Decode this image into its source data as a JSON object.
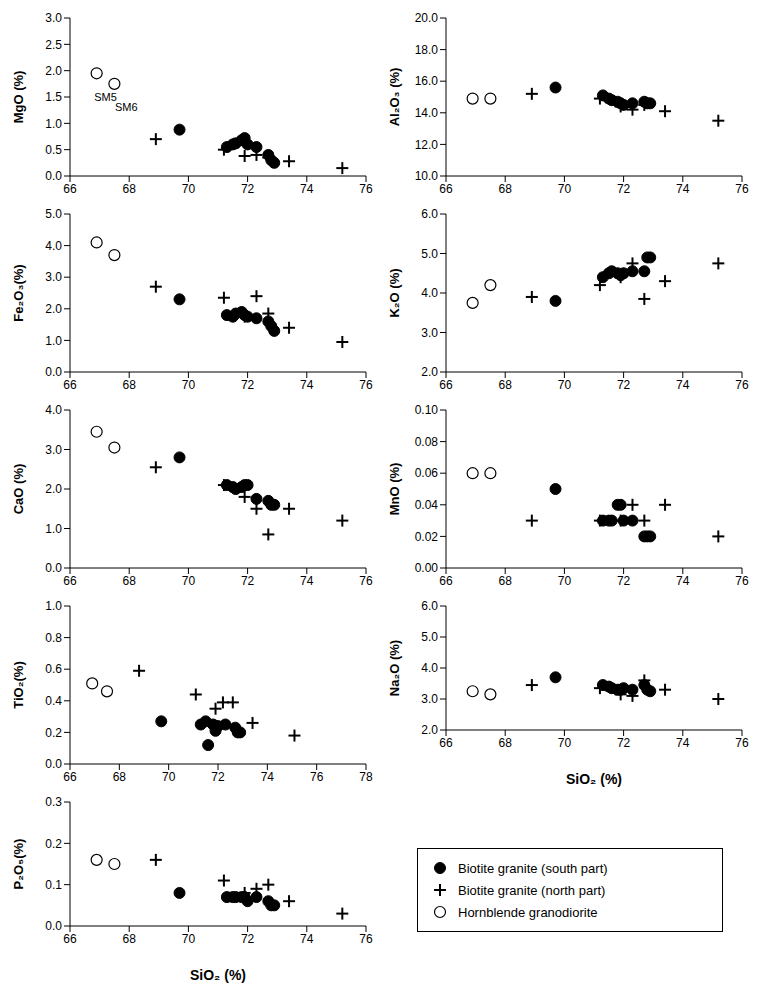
{
  "chart_data": [
    {
      "type": "scatter",
      "y_label": "MgO (%)",
      "xlim": [
        66,
        76
      ],
      "xticks": [
        66,
        68,
        70,
        72,
        74,
        76
      ],
      "ylim": [
        0,
        3
      ],
      "yticks": [
        {
          "value": 0,
          "label": "0.0"
        },
        {
          "value": 0.5,
          "label": "0.5"
        },
        {
          "value": 1,
          "label": "1.0"
        },
        {
          "value": 1.5,
          "label": "1.5"
        },
        {
          "value": 2,
          "label": "2.0"
        },
        {
          "value": 2.5,
          "label": "2.5"
        },
        {
          "value": 3,
          "label": "3.0"
        }
      ],
      "annotations": [
        {
          "text": "SM5",
          "x": 67.2,
          "y": 1.5
        },
        {
          "text": "SM6",
          "x": 67.9,
          "y": 1.3
        }
      ],
      "series": [
        {
          "name": "Biotite granite (south part)",
          "marker": "circle",
          "color": "#000000",
          "x": [
            69.7,
            71.3,
            71.5,
            71.6,
            71.8,
            71.9,
            72.0,
            72.3,
            72.7,
            72.8,
            72.9
          ],
          "values": [
            0.88,
            0.55,
            0.6,
            0.62,
            0.68,
            0.72,
            0.6,
            0.55,
            0.4,
            0.3,
            0.25
          ]
        },
        {
          "name": "Biotite granite (north part)",
          "marker": "plus",
          "color": "#000000",
          "x": [
            68.9,
            71.2,
            71.9,
            72.3,
            72.7,
            73.4,
            75.2
          ],
          "values": [
            0.7,
            0.5,
            0.38,
            0.4,
            0.35,
            0.28,
            0.15
          ]
        },
        {
          "name": "Hornblende granodiorite",
          "marker": "open_circle",
          "color": "#000000",
          "x": [
            66.9,
            67.5
          ],
          "values": [
            1.95,
            1.75
          ]
        }
      ]
    },
    {
      "type": "scatter",
      "y_label": "Al₂O₃ (%)",
      "xlim": [
        66,
        76
      ],
      "xticks": [
        66,
        68,
        70,
        72,
        74,
        76
      ],
      "ylim": [
        10,
        20
      ],
      "yticks": [
        {
          "value": 10,
          "label": "10.0"
        },
        {
          "value": 12,
          "label": "12.0"
        },
        {
          "value": 14,
          "label": "14.0"
        },
        {
          "value": 16,
          "label": "16.0"
        },
        {
          "value": 18,
          "label": "18.0"
        },
        {
          "value": 20,
          "label": "20.0"
        }
      ],
      "series": [
        {
          "name": "Biotite granite (south part)",
          "marker": "circle",
          "color": "#000000",
          "x": [
            69.7,
            71.3,
            71.5,
            71.6,
            71.8,
            71.9,
            72.0,
            72.3,
            72.7,
            72.8,
            72.9
          ],
          "values": [
            15.6,
            15.1,
            14.9,
            14.8,
            14.7,
            14.6,
            14.5,
            14.6,
            14.7,
            14.6,
            14.6
          ]
        },
        {
          "name": "Biotite granite (north part)",
          "marker": "plus",
          "color": "#000000",
          "x": [
            68.9,
            71.2,
            71.9,
            72.3,
            72.7,
            73.4,
            75.2
          ],
          "values": [
            15.2,
            14.9,
            14.4,
            14.2,
            14.5,
            14.1,
            13.5
          ]
        },
        {
          "name": "Hornblende granodiorite",
          "marker": "open_circle",
          "color": "#000000",
          "x": [
            66.9,
            67.5
          ],
          "values": [
            14.9,
            14.9
          ]
        }
      ]
    },
    {
      "type": "scatter",
      "y_label": "Fe₂O₃(%)",
      "xlim": [
        66,
        76
      ],
      "xticks": [
        66,
        68,
        70,
        72,
        74,
        76
      ],
      "ylim": [
        0,
        5
      ],
      "yticks": [
        {
          "value": 0,
          "label": "0.0"
        },
        {
          "value": 1,
          "label": "1.0"
        },
        {
          "value": 2,
          "label": "2.0"
        },
        {
          "value": 3,
          "label": "3.0"
        },
        {
          "value": 4,
          "label": "4.0"
        },
        {
          "value": 5,
          "label": "5.0"
        }
      ],
      "series": [
        {
          "name": "Biotite granite (south part)",
          "marker": "circle",
          "color": "#000000",
          "x": [
            69.7,
            71.3,
            71.5,
            71.6,
            71.8,
            71.9,
            72.0,
            72.3,
            72.7,
            72.8,
            72.9
          ],
          "values": [
            2.3,
            1.8,
            1.75,
            1.85,
            1.9,
            1.8,
            1.75,
            1.7,
            1.6,
            1.45,
            1.3
          ]
        },
        {
          "name": "Biotite granite (north part)",
          "marker": "plus",
          "color": "#000000",
          "x": [
            68.9,
            71.2,
            71.9,
            72.3,
            72.7,
            73.4,
            75.2
          ],
          "values": [
            2.7,
            2.35,
            1.75,
            2.4,
            1.85,
            1.4,
            0.95
          ]
        },
        {
          "name": "Hornblende granodiorite",
          "marker": "open_circle",
          "color": "#000000",
          "x": [
            66.9,
            67.5
          ],
          "values": [
            4.1,
            3.7
          ]
        }
      ]
    },
    {
      "type": "scatter",
      "y_label": "K₂O (%)",
      "xlim": [
        66,
        76
      ],
      "xticks": [
        66,
        68,
        70,
        72,
        74,
        76
      ],
      "ylim": [
        2,
        6
      ],
      "yticks": [
        {
          "value": 2,
          "label": "2.0"
        },
        {
          "value": 3,
          "label": "3.0"
        },
        {
          "value": 4,
          "label": "4.0"
        },
        {
          "value": 5,
          "label": "5.0"
        },
        {
          "value": 6,
          "label": "6.0"
        }
      ],
      "series": [
        {
          "name": "Biotite granite (south part)",
          "marker": "circle",
          "color": "#000000",
          "x": [
            69.7,
            71.3,
            71.5,
            71.6,
            71.8,
            71.9,
            72.0,
            72.3,
            72.7,
            72.8,
            72.9
          ],
          "values": [
            3.8,
            4.4,
            4.5,
            4.55,
            4.5,
            4.45,
            4.5,
            4.55,
            4.55,
            4.9,
            4.9
          ]
        },
        {
          "name": "Biotite granite (north part)",
          "marker": "plus",
          "color": "#000000",
          "x": [
            68.9,
            71.2,
            71.9,
            72.3,
            72.7,
            73.4,
            75.2
          ],
          "values": [
            3.9,
            4.2,
            4.4,
            4.75,
            3.85,
            4.3,
            4.75
          ]
        },
        {
          "name": "Hornblende granodiorite",
          "marker": "open_circle",
          "color": "#000000",
          "x": [
            66.9,
            67.5
          ],
          "values": [
            3.75,
            4.2
          ]
        }
      ]
    },
    {
      "type": "scatter",
      "y_label": "CaO (%)",
      "xlim": [
        66,
        76
      ],
      "xticks": [
        66,
        68,
        70,
        72,
        74,
        76
      ],
      "ylim": [
        0,
        4
      ],
      "yticks": [
        {
          "value": 0,
          "label": "0.0"
        },
        {
          "value": 1,
          "label": "1.0"
        },
        {
          "value": 2,
          "label": "2.0"
        },
        {
          "value": 3,
          "label": "3.0"
        },
        {
          "value": 4,
          "label": "4.0"
        }
      ],
      "series": [
        {
          "name": "Biotite granite (south part)",
          "marker": "circle",
          "color": "#000000",
          "x": [
            69.7,
            71.3,
            71.5,
            71.6,
            71.8,
            71.9,
            72.0,
            72.3,
            72.7,
            72.8,
            72.9
          ],
          "values": [
            2.8,
            2.1,
            2.05,
            2.0,
            2.05,
            2.1,
            2.1,
            1.75,
            1.7,
            1.6,
            1.6
          ]
        },
        {
          "name": "Biotite granite (north part)",
          "marker": "plus",
          "color": "#000000",
          "x": [
            68.9,
            71.2,
            71.9,
            72.3,
            72.7,
            73.4,
            75.2
          ],
          "values": [
            2.55,
            2.1,
            1.8,
            1.5,
            0.85,
            1.5,
            1.2
          ]
        },
        {
          "name": "Hornblende granodiorite",
          "marker": "open_circle",
          "color": "#000000",
          "x": [
            66.9,
            67.5
          ],
          "values": [
            3.45,
            3.05
          ]
        }
      ]
    },
    {
      "type": "scatter",
      "y_label": "MnO (%)",
      "xlim": [
        66,
        76
      ],
      "xticks": [
        66,
        68,
        70,
        72,
        74,
        76
      ],
      "ylim": [
        0,
        0.1
      ],
      "yticks": [
        {
          "value": 0,
          "label": "0.00"
        },
        {
          "value": 0.02,
          "label": "0.02"
        },
        {
          "value": 0.04,
          "label": "0.04"
        },
        {
          "value": 0.06,
          "label": "0.06"
        },
        {
          "value": 0.08,
          "label": "0.08"
        },
        {
          "value": 0.1,
          "label": "0.10"
        }
      ],
      "series": [
        {
          "name": "Biotite granite (south part)",
          "marker": "circle",
          "color": "#000000",
          "x": [
            69.7,
            71.3,
            71.5,
            71.6,
            71.8,
            71.9,
            72.0,
            72.3,
            72.7,
            72.8,
            72.9
          ],
          "values": [
            0.05,
            0.03,
            0.03,
            0.03,
            0.04,
            0.04,
            0.03,
            0.03,
            0.02,
            0.02,
            0.02
          ]
        },
        {
          "name": "Biotite granite (north part)",
          "marker": "plus",
          "color": "#000000",
          "x": [
            68.9,
            71.2,
            71.9,
            72.3,
            72.7,
            73.4,
            75.2
          ],
          "values": [
            0.03,
            0.03,
            0.03,
            0.04,
            0.03,
            0.04,
            0.02
          ]
        },
        {
          "name": "Hornblende granodiorite",
          "marker": "open_circle",
          "color": "#000000",
          "x": [
            66.9,
            67.5
          ],
          "values": [
            0.06,
            0.06
          ]
        }
      ]
    },
    {
      "type": "scatter",
      "y_label": "TiO₂(%)",
      "xlim": [
        66,
        78
      ],
      "xticks": [
        66,
        68,
        70,
        72,
        74,
        76,
        78
      ],
      "ylim": [
        0,
        1
      ],
      "yticks": [
        {
          "value": 0,
          "label": "0.0"
        },
        {
          "value": 0.2,
          "label": "0.2"
        },
        {
          "value": 0.4,
          "label": "0.4"
        },
        {
          "value": 0.6,
          "label": "0.6"
        },
        {
          "value": 0.8,
          "label": "0.8"
        },
        {
          "value": 1,
          "label": "1.0"
        }
      ],
      "series": [
        {
          "name": "Biotite granite (south part)",
          "marker": "circle",
          "color": "#000000",
          "x": [
            69.7,
            71.3,
            71.5,
            71.6,
            71.8,
            71.9,
            72.0,
            72.3,
            72.7,
            72.8,
            72.9
          ],
          "values": [
            0.27,
            0.25,
            0.27,
            0.12,
            0.25,
            0.21,
            0.24,
            0.25,
            0.23,
            0.2,
            0.2
          ]
        },
        {
          "name": "Biotite granite (north part)",
          "marker": "plus",
          "color": "#000000",
          "x": [
            68.8,
            71.1,
            71.9,
            72.2,
            72.6,
            73.4,
            75.1
          ],
          "values": [
            0.59,
            0.44,
            0.35,
            0.39,
            0.39,
            0.26,
            0.18
          ]
        },
        {
          "name": "Hornblende granodiorite",
          "marker": "open_circle",
          "color": "#000000",
          "x": [
            66.9,
            67.5
          ],
          "values": [
            0.51,
            0.46
          ]
        }
      ]
    },
    {
      "type": "scatter",
      "y_label": "Na₂O (%)",
      "x_label": "SiO₂ (%)",
      "xlim": [
        66,
        76
      ],
      "xticks": [
        66,
        68,
        70,
        72,
        74,
        76
      ],
      "ylim": [
        2,
        6
      ],
      "yticks": [
        {
          "value": 2,
          "label": "2.0"
        },
        {
          "value": 3,
          "label": "3.0"
        },
        {
          "value": 4,
          "label": "4.0"
        },
        {
          "value": 5,
          "label": "5.0"
        },
        {
          "value": 6,
          "label": "6.0"
        }
      ],
      "series": [
        {
          "name": "Biotite granite (south part)",
          "marker": "circle",
          "color": "#000000",
          "x": [
            69.7,
            71.3,
            71.5,
            71.6,
            71.8,
            71.9,
            72.0,
            72.3,
            72.7,
            72.8,
            72.9
          ],
          "values": [
            3.7,
            3.45,
            3.4,
            3.35,
            3.3,
            3.3,
            3.35,
            3.3,
            3.45,
            3.3,
            3.25
          ]
        },
        {
          "name": "Biotite granite (north part)",
          "marker": "plus",
          "color": "#000000",
          "x": [
            68.9,
            71.2,
            71.9,
            72.3,
            72.7,
            73.4,
            75.2
          ],
          "values": [
            3.45,
            3.35,
            3.15,
            3.1,
            3.6,
            3.3,
            3.0
          ]
        },
        {
          "name": "Hornblende granodiorite",
          "marker": "open_circle",
          "color": "#000000",
          "x": [
            66.9,
            67.5
          ],
          "values": [
            3.25,
            3.15
          ]
        }
      ]
    },
    {
      "type": "scatter",
      "y_label": "P₂O₅(%)",
      "x_label": "SiO₂ (%)",
      "xlim": [
        66,
        76
      ],
      "xticks": [
        66,
        68,
        70,
        72,
        74,
        76
      ],
      "ylim": [
        0,
        0.3
      ],
      "yticks": [
        {
          "value": 0,
          "label": "0.0"
        },
        {
          "value": 0.1,
          "label": "0.1"
        },
        {
          "value": 0.2,
          "label": "0.2"
        },
        {
          "value": 0.3,
          "label": "0.3"
        }
      ],
      "series": [
        {
          "name": "Biotite granite (south part)",
          "marker": "circle",
          "color": "#000000",
          "x": [
            69.7,
            71.3,
            71.5,
            71.6,
            71.8,
            71.9,
            72.0,
            72.3,
            72.7,
            72.8,
            72.9
          ],
          "values": [
            0.08,
            0.07,
            0.07,
            0.07,
            0.07,
            0.07,
            0.06,
            0.07,
            0.06,
            0.05,
            0.05
          ]
        },
        {
          "name": "Biotite granite (north part)",
          "marker": "plus",
          "color": "#000000",
          "x": [
            68.9,
            71.2,
            71.9,
            72.3,
            72.7,
            73.4,
            75.2
          ],
          "values": [
            0.16,
            0.11,
            0.08,
            0.09,
            0.1,
            0.06,
            0.03
          ]
        },
        {
          "name": "Hornblende granodiorite",
          "marker": "open_circle",
          "color": "#000000",
          "x": [
            66.9,
            67.5
          ],
          "values": [
            0.16,
            0.15
          ]
        }
      ]
    }
  ]
}
